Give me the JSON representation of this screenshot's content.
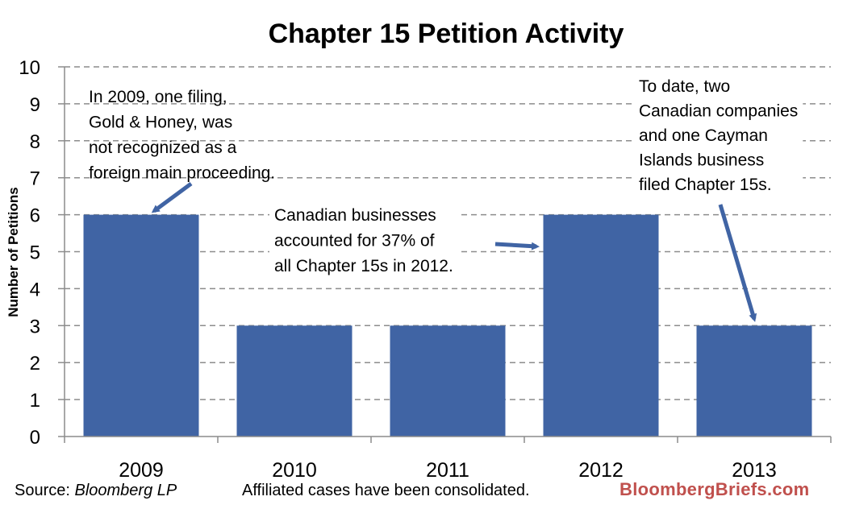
{
  "chart_data": {
    "type": "bar",
    "title": "Chapter 15 Petition Activity",
    "xlabel": "",
    "ylabel": "Number of Petitions",
    "categories": [
      "2009",
      "2010",
      "2011",
      "2012",
      "2013"
    ],
    "values": [
      6,
      3,
      3,
      6,
      3
    ],
    "ylim": [
      0,
      10
    ],
    "yticks": [
      "0",
      "1",
      "2",
      "3",
      "4",
      "5",
      "6",
      "7",
      "8",
      "9",
      "10"
    ],
    "grid": "horizontal dashed",
    "bar_color": "#4064a4",
    "annotations": [
      {
        "id": "note-2009",
        "lines": [
          "In 2009, one filing,",
          "Gold & Honey, was",
          "not recognized as a",
          "foreign main proceeding."
        ]
      },
      {
        "id": "note-2012",
        "lines": [
          "Canadian businesses",
          "accounted for 37% of",
          "all Chapter 15s in 2012."
        ]
      },
      {
        "id": "note-2013",
        "lines": [
          "To date, two",
          "Canadian companies",
          "and one Cayman",
          "Islands business",
          "filed Chapter 15s."
        ]
      }
    ]
  },
  "footer": {
    "source_prefix": "Source: ",
    "source_name": "Bloomberg LP",
    "note": "Affiliated cases have been consolidated.",
    "brand": "BloombergBriefs.com",
    "brand_color": "#c0504d"
  }
}
